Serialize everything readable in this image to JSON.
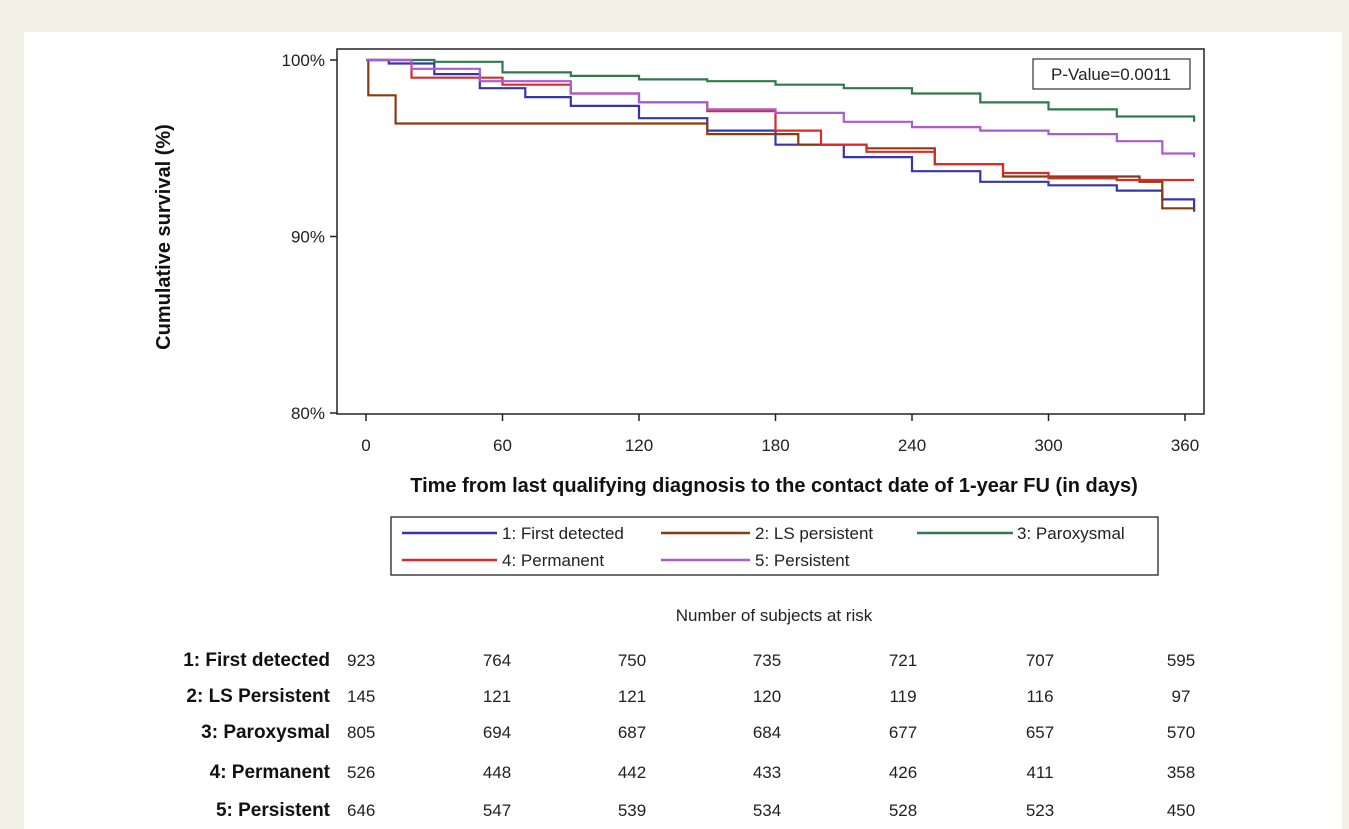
{
  "chart_data": {
    "type": "line",
    "ylabel": "Cumulative survival (%)",
    "xlabel": "Time from last qualifying diagnosis to the contact date of 1-year FU (in days)",
    "ylim": [
      80,
      100
    ],
    "xlim": [
      0,
      366
    ],
    "y_ticks": [
      80,
      90,
      100
    ],
    "y_tick_labels": [
      "80%",
      "90%",
      "100%"
    ],
    "x_ticks": [
      0,
      60,
      120,
      180,
      240,
      300,
      360
    ],
    "x_tick_labels": [
      "0",
      "60",
      "120",
      "180",
      "240",
      "300",
      "360"
    ],
    "annotation": "P-Value=0.0011",
    "legend_position": "bottom",
    "series": [
      {
        "name": "1: First detected",
        "color": "#3535b0",
        "x": [
          0,
          10,
          30,
          50,
          70,
          90,
          120,
          150,
          180,
          210,
          240,
          270,
          300,
          330,
          350,
          364
        ],
        "y": [
          100,
          99.8,
          99.2,
          98.4,
          97.9,
          97.4,
          96.7,
          96.0,
          95.2,
          94.5,
          93.7,
          93.1,
          92.9,
          92.6,
          92.1,
          91.4
        ]
      },
      {
        "name": "2: LS persistent",
        "color": "#8b3a10",
        "x": [
          0,
          1,
          13,
          40,
          80,
          120,
          150,
          190,
          220,
          250,
          280,
          340,
          350,
          364
        ],
        "y": [
          100,
          98.0,
          96.4,
          96.4,
          96.4,
          96.4,
          95.8,
          95.2,
          95.0,
          94.1,
          93.4,
          93.1,
          91.6,
          91.5
        ]
      },
      {
        "name": "3: Paroxysmal",
        "color": "#2e7a4b",
        "x": [
          0,
          30,
          60,
          90,
          120,
          150,
          180,
          210,
          240,
          270,
          300,
          330,
          364
        ],
        "y": [
          100,
          99.9,
          99.3,
          99.1,
          98.9,
          98.8,
          98.6,
          98.4,
          98.1,
          97.6,
          97.2,
          96.8,
          96.5
        ]
      },
      {
        "name": "4: Permanent",
        "color": "#d92b2b",
        "x": [
          0,
          20,
          60,
          90,
          120,
          150,
          180,
          200,
          220,
          250,
          280,
          300,
          330,
          364
        ],
        "y": [
          100,
          99.0,
          98.6,
          98.1,
          97.6,
          97.1,
          96.0,
          95.2,
          94.8,
          94.1,
          93.6,
          93.3,
          93.2,
          93.2
        ]
      },
      {
        "name": "5: Persistent",
        "color": "#a85cd0",
        "x": [
          0,
          20,
          50,
          90,
          120,
          150,
          180,
          210,
          240,
          270,
          300,
          330,
          350,
          364
        ],
        "y": [
          100,
          99.5,
          98.8,
          98.1,
          97.6,
          97.2,
          97.0,
          96.5,
          96.2,
          96.0,
          95.8,
          95.4,
          94.7,
          94.5
        ]
      }
    ],
    "risk_table": {
      "title": "Number of subjects at risk",
      "timepoints": [
        0,
        60,
        120,
        180,
        240,
        300,
        360
      ],
      "rows": [
        {
          "label": "1: First detected",
          "values": [
            "923",
            "764",
            "750",
            "735",
            "721",
            "707",
            "595"
          ]
        },
        {
          "label": "2: LS Persistent",
          "values": [
            "145",
            "121",
            "121",
            "120",
            "119",
            "116",
            "97"
          ]
        },
        {
          "label": "3: Paroxysmal",
          "values": [
            "805",
            "694",
            "687",
            "684",
            "677",
            "657",
            "570"
          ]
        },
        {
          "label": "4: Permanent",
          "values": [
            "526",
            "448",
            "442",
            "433",
            "426",
            "411",
            "358"
          ]
        },
        {
          "label": "5: Persistent",
          "values": [
            "646",
            "547",
            "539",
            "534",
            "528",
            "523",
            "450"
          ]
        }
      ]
    }
  }
}
